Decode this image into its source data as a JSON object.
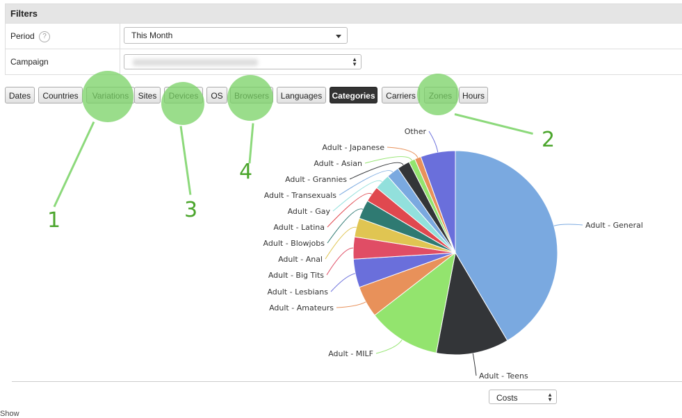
{
  "filters": {
    "title": "Filters",
    "period": {
      "label": "Period",
      "help": "?",
      "value": "This Month"
    },
    "campaign": {
      "label": "Campaign",
      "value": ""
    }
  },
  "tabs": [
    {
      "label": "Dates",
      "active": false
    },
    {
      "label": "Countries",
      "active": false
    },
    {
      "label": "Variations",
      "active": false
    },
    {
      "label": "Sites",
      "active": false
    },
    {
      "label": "Devices",
      "active": false
    },
    {
      "label": "OS",
      "active": false
    },
    {
      "label": "Browsers",
      "active": false
    },
    {
      "label": "Languages",
      "active": false
    },
    {
      "label": "Categories",
      "active": true
    },
    {
      "label": "Carriers",
      "active": false
    },
    {
      "label": "Zones",
      "active": false
    },
    {
      "label": "Hours",
      "active": false
    }
  ],
  "annotations": [
    "1",
    "2",
    "3",
    "4"
  ],
  "metric_select": {
    "value": "Costs"
  },
  "footer_text": "Show",
  "colors": {
    "highlight": "#78d264",
    "annotation_text": "#4aa52b"
  },
  "chart_data": {
    "type": "pie",
    "slices": [
      {
        "label": "Adult - General",
        "value": 41.5,
        "color": "#7aa9e0"
      },
      {
        "label": "Adult - Teens",
        "value": 11.5,
        "color": "#333538"
      },
      {
        "label": "Adult - MILF",
        "value": 11.5,
        "color": "#93e46e"
      },
      {
        "label": "Adult - Amateurs",
        "value": 5.0,
        "color": "#e8915a"
      },
      {
        "label": "Adult - Lesbians",
        "value": 4.5,
        "color": "#6a6fdb"
      },
      {
        "label": "Adult - Big Tits",
        "value": 3.5,
        "color": "#e04d65"
      },
      {
        "label": "Adult - Anal",
        "value": 3.0,
        "color": "#e0c552"
      },
      {
        "label": "Adult - Blowjobs",
        "value": 3.0,
        "color": "#2f7a72"
      },
      {
        "label": "Adult - Latina",
        "value": 2.5,
        "color": "#e0484f"
      },
      {
        "label": "Adult - Gay",
        "value": 2.5,
        "color": "#92e0dc"
      },
      {
        "label": "Adult - Transexuals",
        "value": 2.0,
        "color": "#7aa9e0"
      },
      {
        "label": "Adult - Grannies",
        "value": 2.0,
        "color": "#333538"
      },
      {
        "label": "Adult - Asian",
        "value": 1.0,
        "color": "#93e46e"
      },
      {
        "label": "Adult - Japanese",
        "value": 1.0,
        "color": "#e8915a"
      },
      {
        "label": "Other",
        "value": 5.5,
        "color": "#6a6fdb"
      }
    ]
  }
}
